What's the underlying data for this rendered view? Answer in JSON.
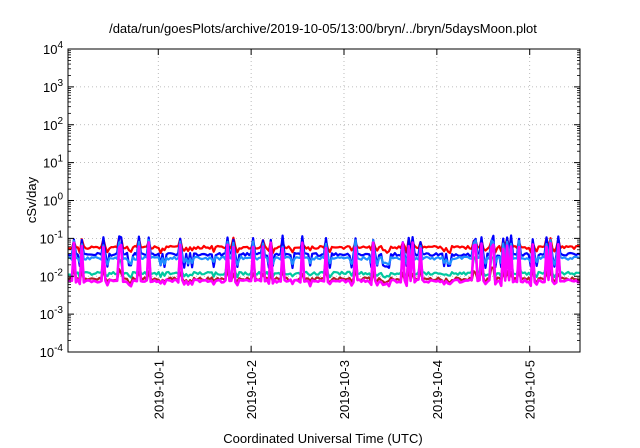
{
  "chart_data": {
    "type": "line",
    "title": "/data/run/goesPlots/archive/2019-10-05/13:00/bryn/../bryn/5daysMoon.plot",
    "xlabel": "Coordinated Universal Time (UTC)",
    "ylabel": "cSv/day",
    "y_scale": "log",
    "ylim": [
      0.0001,
      10000
    ],
    "y_ticks": [
      {
        "value": 0.0001,
        "base": "10",
        "exp": "-4"
      },
      {
        "value": 0.001,
        "base": "10",
        "exp": "-3"
      },
      {
        "value": 0.01,
        "base": "10",
        "exp": "-2"
      },
      {
        "value": 0.1,
        "base": "10",
        "exp": "-1"
      },
      {
        "value": 1,
        "base": "10",
        "exp": "0"
      },
      {
        "value": 10,
        "base": "10",
        "exp": "1"
      },
      {
        "value": 100,
        "base": "10",
        "exp": "2"
      },
      {
        "value": 1000,
        "base": "10",
        "exp": "3"
      },
      {
        "value": 10000,
        "base": "10",
        "exp": "4"
      }
    ],
    "xlim": [
      "2019-09-30T00:40",
      "2019-10-05T13:00"
    ],
    "x_ticks": [
      "2019-10-1",
      "2019-10-2",
      "2019-10-3",
      "2019-10-4",
      "2019-10-5"
    ],
    "x_tick_dates": [
      "2019-10-01",
      "2019-10-02",
      "2019-10-03",
      "2019-10-04",
      "2019-10-05"
    ],
    "grid": true,
    "legend": "none",
    "series": [
      {
        "color": "#ff0000",
        "base": 0.058,
        "spike": 0.095,
        "dip": 0.045
      },
      {
        "color": "#0000ff",
        "base": 0.038,
        "spike": 0.105,
        "dip": 0.018
      },
      {
        "color": "#1e90ff",
        "base": 0.03,
        "spike": 0.08,
        "dip": 0.022
      },
      {
        "color": "#00c8a0",
        "base": 0.012,
        "spike": 0.03,
        "dip": 0.01
      },
      {
        "color": "#b22222",
        "base": 0.0085,
        "spike": 0.015,
        "dip": 0.007
      },
      {
        "color": "#ff00ff",
        "base": 0.0075,
        "spike": 0.07,
        "dip": 0.006
      }
    ]
  }
}
